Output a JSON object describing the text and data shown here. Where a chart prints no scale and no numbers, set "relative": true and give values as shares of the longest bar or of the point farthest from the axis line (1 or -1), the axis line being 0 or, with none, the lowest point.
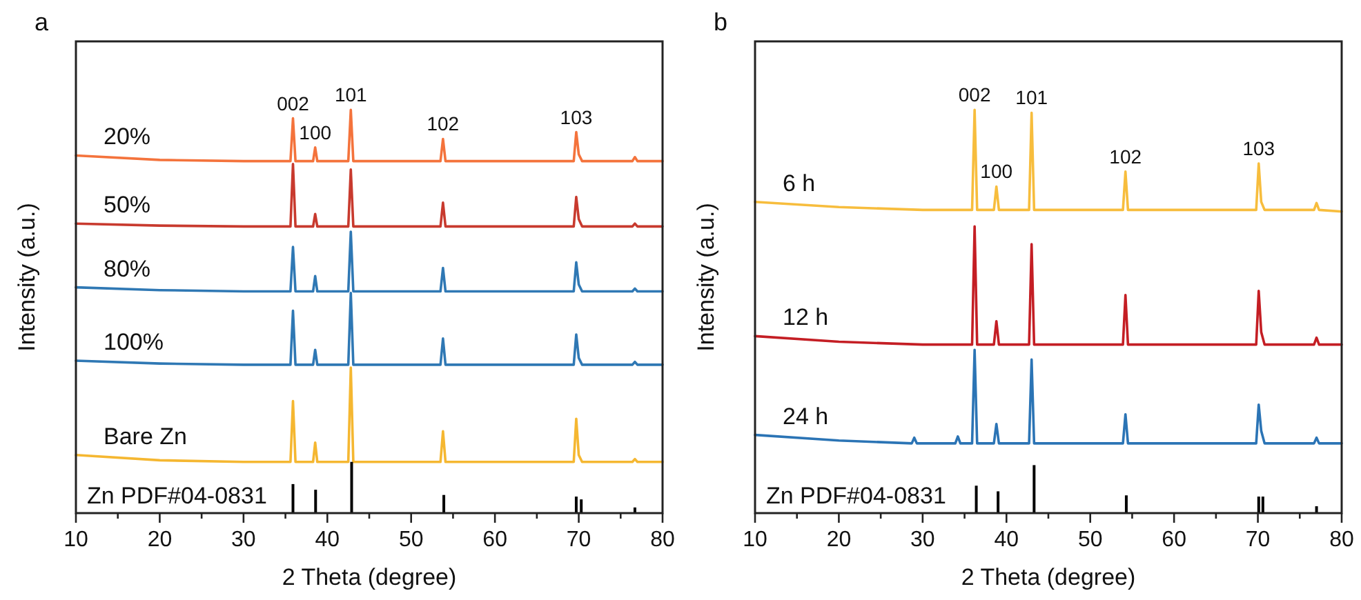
{
  "chart_data": [
    {
      "type": "line",
      "title": "a",
      "xlabel": "2 Theta (degree)",
      "ylabel": "Intensity (a.u.)",
      "relative": true,
      "xlim": [
        10,
        80
      ],
      "xticks": [
        10,
        {
          "value": 15,
          "label": null
        },
        20,
        {
          "value": 25,
          "label": null
        },
        30,
        {
          "value": 35,
          "label": null
        },
        40,
        {
          "value": 45,
          "label": null
        },
        50,
        {
          "value": 55,
          "label": null
        },
        60,
        {
          "value": 65,
          "label": null
        },
        70,
        {
          "value": 75,
          "label": null
        },
        80
      ],
      "series": [
        {
          "name": "20%",
          "color": "#f4733c",
          "x": [
            10,
            20,
            30,
            35.6,
            35.9,
            36.2,
            38.3,
            38.55,
            38.8,
            42.5,
            42.8,
            43.1,
            53.5,
            53.8,
            54.1,
            69.4,
            69.7,
            70.0,
            70.4,
            76.4,
            76.7,
            77,
            80
          ],
          "values": [
            0.887,
            0.876,
            0.873,
            0.873,
            0.979,
            0.873,
            0.873,
            0.907,
            0.873,
            0.873,
            1.0,
            0.873,
            0.873,
            0.928,
            0.873,
            0.873,
            0.945,
            0.89,
            0.873,
            0.873,
            0.883,
            0.873,
            0.873
          ]
        },
        {
          "name": "50%",
          "color": "#c83a2e",
          "x": [
            10,
            20,
            30,
            35.6,
            35.9,
            36.2,
            38.3,
            38.55,
            38.8,
            42.5,
            42.8,
            43.1,
            53.5,
            53.8,
            54.1,
            69.4,
            69.7,
            70.0,
            70.4,
            76.4,
            76.7,
            77,
            80
          ],
          "values": [
            0.718,
            0.713,
            0.711,
            0.711,
            0.866,
            0.711,
            0.711,
            0.742,
            0.711,
            0.711,
            0.852,
            0.711,
            0.711,
            0.77,
            0.711,
            0.711,
            0.784,
            0.729,
            0.711,
            0.711,
            0.718,
            0.711,
            0.711
          ]
        },
        {
          "name": "80%",
          "color": "#2f78b4",
          "x": [
            10,
            20,
            30,
            35.6,
            35.9,
            36.2,
            38.3,
            38.55,
            38.8,
            42.5,
            42.8,
            43.1,
            53.5,
            53.8,
            54.1,
            69.4,
            69.7,
            70.0,
            70.4,
            76.4,
            76.7,
            77,
            80
          ],
          "values": [
            0.56,
            0.553,
            0.55,
            0.55,
            0.66,
            0.55,
            0.55,
            0.588,
            0.55,
            0.55,
            0.698,
            0.55,
            0.55,
            0.608,
            0.55,
            0.55,
            0.622,
            0.567,
            0.55,
            0.55,
            0.557,
            0.55,
            0.55
          ]
        },
        {
          "name": "100%",
          "color": "#2f78b4",
          "x": [
            10,
            20,
            30,
            35.6,
            35.9,
            36.2,
            38.3,
            38.55,
            38.8,
            42.5,
            42.8,
            43.1,
            53.5,
            53.8,
            54.1,
            69.4,
            69.7,
            70.0,
            70.4,
            76.4,
            76.7,
            77,
            80
          ],
          "values": [
            0.378,
            0.371,
            0.368,
            0.368,
            0.502,
            0.368,
            0.368,
            0.405,
            0.368,
            0.368,
            0.546,
            0.368,
            0.368,
            0.433,
            0.368,
            0.368,
            0.443,
            0.385,
            0.368,
            0.368,
            0.375,
            0.368,
            0.368
          ]
        },
        {
          "name": "Bare Zn",
          "color": "#f5b731",
          "x": [
            10,
            20,
            30,
            35.6,
            35.9,
            36.2,
            38.3,
            38.55,
            38.8,
            42.5,
            42.8,
            43.1,
            53.5,
            53.8,
            54.1,
            69.4,
            69.7,
            70.0,
            70.4,
            76.4,
            76.7,
            77,
            80
          ],
          "values": [
            0.144,
            0.131,
            0.127,
            0.127,
            0.278,
            0.127,
            0.127,
            0.175,
            0.127,
            0.127,
            0.361,
            0.127,
            0.127,
            0.203,
            0.127,
            0.127,
            0.234,
            0.144,
            0.127,
            0.127,
            0.134,
            0.127,
            0.127
          ]
        },
        {
          "name": "Zn PDF#04-0831",
          "type": "bar",
          "color": "#000000",
          "x": [
            35.9,
            38.6,
            42.9,
            53.9,
            69.7,
            70.3,
            76.7
          ],
          "values": [
            0.072,
            0.058,
            0.127,
            0.045,
            0.041,
            0.034,
            0.014
          ]
        }
      ],
      "annotations": [
        {
          "text": "002",
          "x": 35.9,
          "y": 0.979
        },
        {
          "text": "100",
          "x": 38.55,
          "y": 0.907
        },
        {
          "text": "101",
          "x": 42.8,
          "y": 1.0
        },
        {
          "text": "102",
          "x": 53.8,
          "y": 0.928
        },
        {
          "text": "103",
          "x": 69.7,
          "y": 0.945
        }
      ]
    },
    {
      "type": "line",
      "title": "b",
      "xlabel": "2 Theta (degree)",
      "ylabel": "Intensity (a.u.)",
      "relative": true,
      "xlim": [
        10,
        80
      ],
      "xticks": [
        10,
        {
          "value": 15,
          "label": null
        },
        20,
        {
          "value": 25,
          "label": null
        },
        30,
        {
          "value": 35,
          "label": null
        },
        40,
        {
          "value": 45,
          "label": null
        },
        50,
        {
          "value": 55,
          "label": null
        },
        60,
        {
          "value": 65,
          "label": null
        },
        70,
        {
          "value": 75,
          "label": null
        },
        80
      ],
      "series": [
        {
          "name": "6 h",
          "color": "#f7bd3d",
          "x": [
            10,
            20,
            30,
            35.9,
            36.2,
            36.5,
            38.5,
            38.8,
            39.1,
            42.7,
            43.0,
            43.3,
            53.9,
            54.2,
            54.5,
            69.8,
            70.1,
            70.4,
            70.8,
            76.7,
            77.0,
            77.3,
            80
          ],
          "values": [
            0.772,
            0.759,
            0.752,
            0.752,
            1.0,
            0.752,
            0.752,
            0.81,
            0.752,
            0.752,
            0.993,
            0.752,
            0.752,
            0.847,
            0.752,
            0.752,
            0.867,
            0.772,
            0.752,
            0.752,
            0.769,
            0.752,
            0.748
          ]
        },
        {
          "name": "12 h",
          "color": "#c41e24",
          "x": [
            10,
            20,
            30,
            35.9,
            36.2,
            36.5,
            38.5,
            38.8,
            39.1,
            42.7,
            43.0,
            43.3,
            53.9,
            54.2,
            54.5,
            69.8,
            70.1,
            70.4,
            70.8,
            76.7,
            77.0,
            77.3,
            80
          ],
          "values": [
            0.439,
            0.425,
            0.418,
            0.418,
            0.711,
            0.418,
            0.418,
            0.476,
            0.418,
            0.418,
            0.667,
            0.418,
            0.418,
            0.541,
            0.418,
            0.418,
            0.551,
            0.449,
            0.418,
            0.418,
            0.435,
            0.418,
            0.418
          ]
        },
        {
          "name": "24 h",
          "color": "#2b74b5",
          "x": [
            10,
            20,
            28.7,
            29,
            29.3,
            33.9,
            34.2,
            34.5,
            35.9,
            36.2,
            36.5,
            38.5,
            38.8,
            39.1,
            42.7,
            43.0,
            43.3,
            53.9,
            54.2,
            54.5,
            69.8,
            70.1,
            70.4,
            70.8,
            76.7,
            77.0,
            77.3,
            80
          ],
          "values": [
            0.194,
            0.18,
            0.173,
            0.187,
            0.173,
            0.173,
            0.19,
            0.173,
            0.173,
            0.405,
            0.173,
            0.173,
            0.221,
            0.173,
            0.173,
            0.381,
            0.173,
            0.173,
            0.245,
            0.173,
            0.173,
            0.269,
            0.204,
            0.173,
            0.173,
            0.187,
            0.173,
            0.173
          ]
        },
        {
          "name": "Zn PDF#04-0831",
          "type": "bar",
          "color": "#000000",
          "x": [
            36.4,
            39.0,
            43.3,
            54.3,
            70.1,
            70.6,
            77.0
          ],
          "values": [
            0.068,
            0.054,
            0.119,
            0.044,
            0.041,
            0.041,
            0.017
          ]
        }
      ],
      "annotations": [
        {
          "text": "002",
          "x": 36.2,
          "y": 1.0
        },
        {
          "text": "100",
          "x": 38.8,
          "y": 0.81
        },
        {
          "text": "101",
          "x": 43.0,
          "y": 0.993
        },
        {
          "text": "102",
          "x": 54.2,
          "y": 0.847
        },
        {
          "text": "103",
          "x": 70.1,
          "y": 0.867
        }
      ]
    }
  ]
}
